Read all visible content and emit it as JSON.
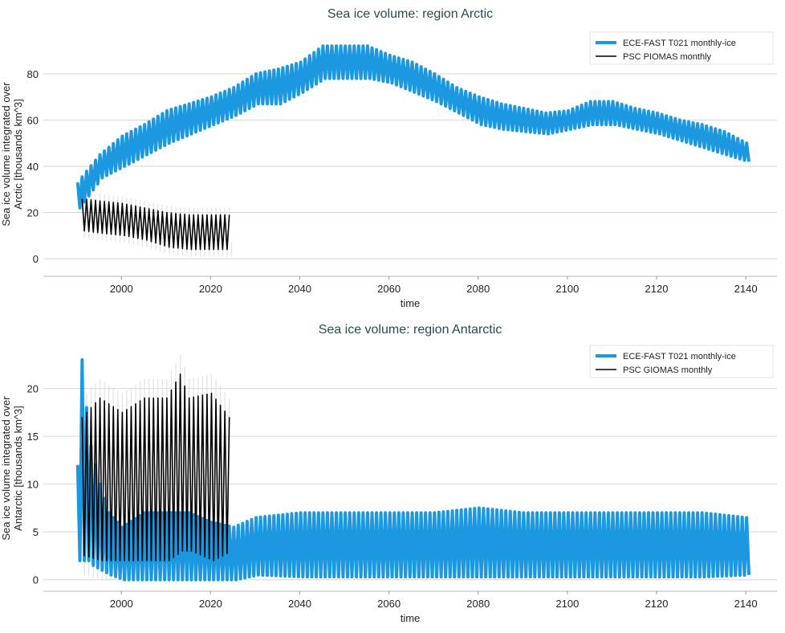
{
  "chart_data": [
    {
      "type": "line",
      "title": "Sea ice volume: region Arctic",
      "xlabel": "time",
      "ylabel": [
        "Sea ice volume integrated over",
        "Arctic [thousands km^3]"
      ],
      "xlim": [
        1982.5,
        2147
      ],
      "ylim": [
        -7.6,
        98
      ],
      "xticks": [
        2000,
        2020,
        2040,
        2060,
        2080,
        2100,
        2120,
        2140
      ],
      "yticks": [
        0,
        20,
        40,
        60,
        80
      ],
      "grid": "horizontal",
      "legend_position": "top-right",
      "series": [
        {
          "name": "ECE-FAST T021 monthly-ice",
          "color": "#1b98e0",
          "seasonal_cycle": {
            "years": [
              1990,
              1995,
              2000,
              2005,
              2010,
              2015,
              2020,
              2025,
              2030,
              2035,
              2040,
              2045,
              2050,
              2055,
              2060,
              2065,
              2070,
              2075,
              2080,
              2085,
              2090,
              2095,
              2100,
              2105,
              2110,
              2115,
              2120,
              2125,
              2130,
              2135,
              2140
            ],
            "annual_max": [
              33,
              45,
              53,
              58,
              64,
              67,
              70,
              74,
              80,
              82,
              85,
              92,
              92,
              92,
              88,
              85,
              80,
              74,
              70,
              67,
              65,
              63,
              64,
              68,
              68,
              65,
              63,
              60,
              58,
              55,
              50
            ],
            "annual_min": [
              22,
              35,
              40,
              45,
              50,
              54,
              58,
              62,
              67,
              67,
              72,
              78,
              78,
              78,
              76,
              72,
              68,
              63,
              58,
              56,
              55,
              54,
              56,
              58,
              58,
              56,
              54,
              51,
              48,
              45,
              42
            ]
          }
        },
        {
          "name": "PSC PIOMAS monthly",
          "color": "#000000",
          "uncertainty_band": 3,
          "seasonal_cycle": {
            "years": [
              1991,
              1995,
              2000,
              2005,
              2010,
              2015,
              2020,
              2024
            ],
            "annual_max": [
              26,
              25,
              24,
              22,
              20,
              19,
              19,
              19
            ],
            "annual_min": [
              12,
              11,
              10,
              8,
              5,
              4,
              4,
              4
            ]
          }
        }
      ]
    },
    {
      "type": "line",
      "title": "Sea ice volume: region Antarctic",
      "xlabel": "time",
      "ylabel": [
        "Sea ice volume integrated over",
        "Antarctic [thousands km^3]"
      ],
      "xlim": [
        1982.5,
        2147
      ],
      "ylim": [
        -1.2,
        24.5
      ],
      "xticks": [
        2000,
        2020,
        2040,
        2060,
        2080,
        2100,
        2120,
        2140
      ],
      "yticks": [
        0,
        5,
        10,
        15,
        20
      ],
      "grid": "horizontal",
      "legend_position": "top-right",
      "series": [
        {
          "name": "ECE-FAST T021 monthly-ice",
          "color": "#1b98e0",
          "seasonal_cycle": {
            "years": [
              1990,
              1991,
              1992,
              1993,
              1995,
              1997,
              2000,
              2005,
              2010,
              2015,
              2020,
              2025,
              2030,
              2040,
              2050,
              2060,
              2070,
              2080,
              2090,
              2100,
              2110,
              2120,
              2130,
              2140
            ],
            "annual_max": [
              12,
              23,
              18,
              14,
              10,
              7,
              5.5,
              7,
              7,
              7,
              6,
              5.5,
              6.5,
              7,
              7,
              7,
              7,
              7.5,
              7,
              7,
              7,
              7,
              7,
              6.5
            ],
            "annual_min": [
              2,
              2,
              2,
              1.5,
              1,
              0.5,
              0,
              0,
              0,
              0,
              0,
              0,
              0.5,
              0.3,
              0.3,
              0.3,
              0.3,
              0.3,
              0.3,
              0.3,
              0.3,
              0.3,
              0.3,
              0.5
            ]
          }
        },
        {
          "name": "PSC GIOMAS monthly",
          "color": "#000000",
          "uncertainty_band": 2,
          "seasonal_cycle": {
            "years": [
              1991,
              1995,
              2000,
              2005,
              2010,
              2013,
              2015,
              2020,
              2024
            ],
            "annual_max": [
              17,
              19,
              17.5,
              19,
              19,
              21.5,
              19,
              19.5,
              17
            ],
            "annual_min": [
              2.5,
              2,
              2,
              2,
              2,
              3,
              3,
              2,
              3
            ]
          }
        }
      ]
    }
  ]
}
